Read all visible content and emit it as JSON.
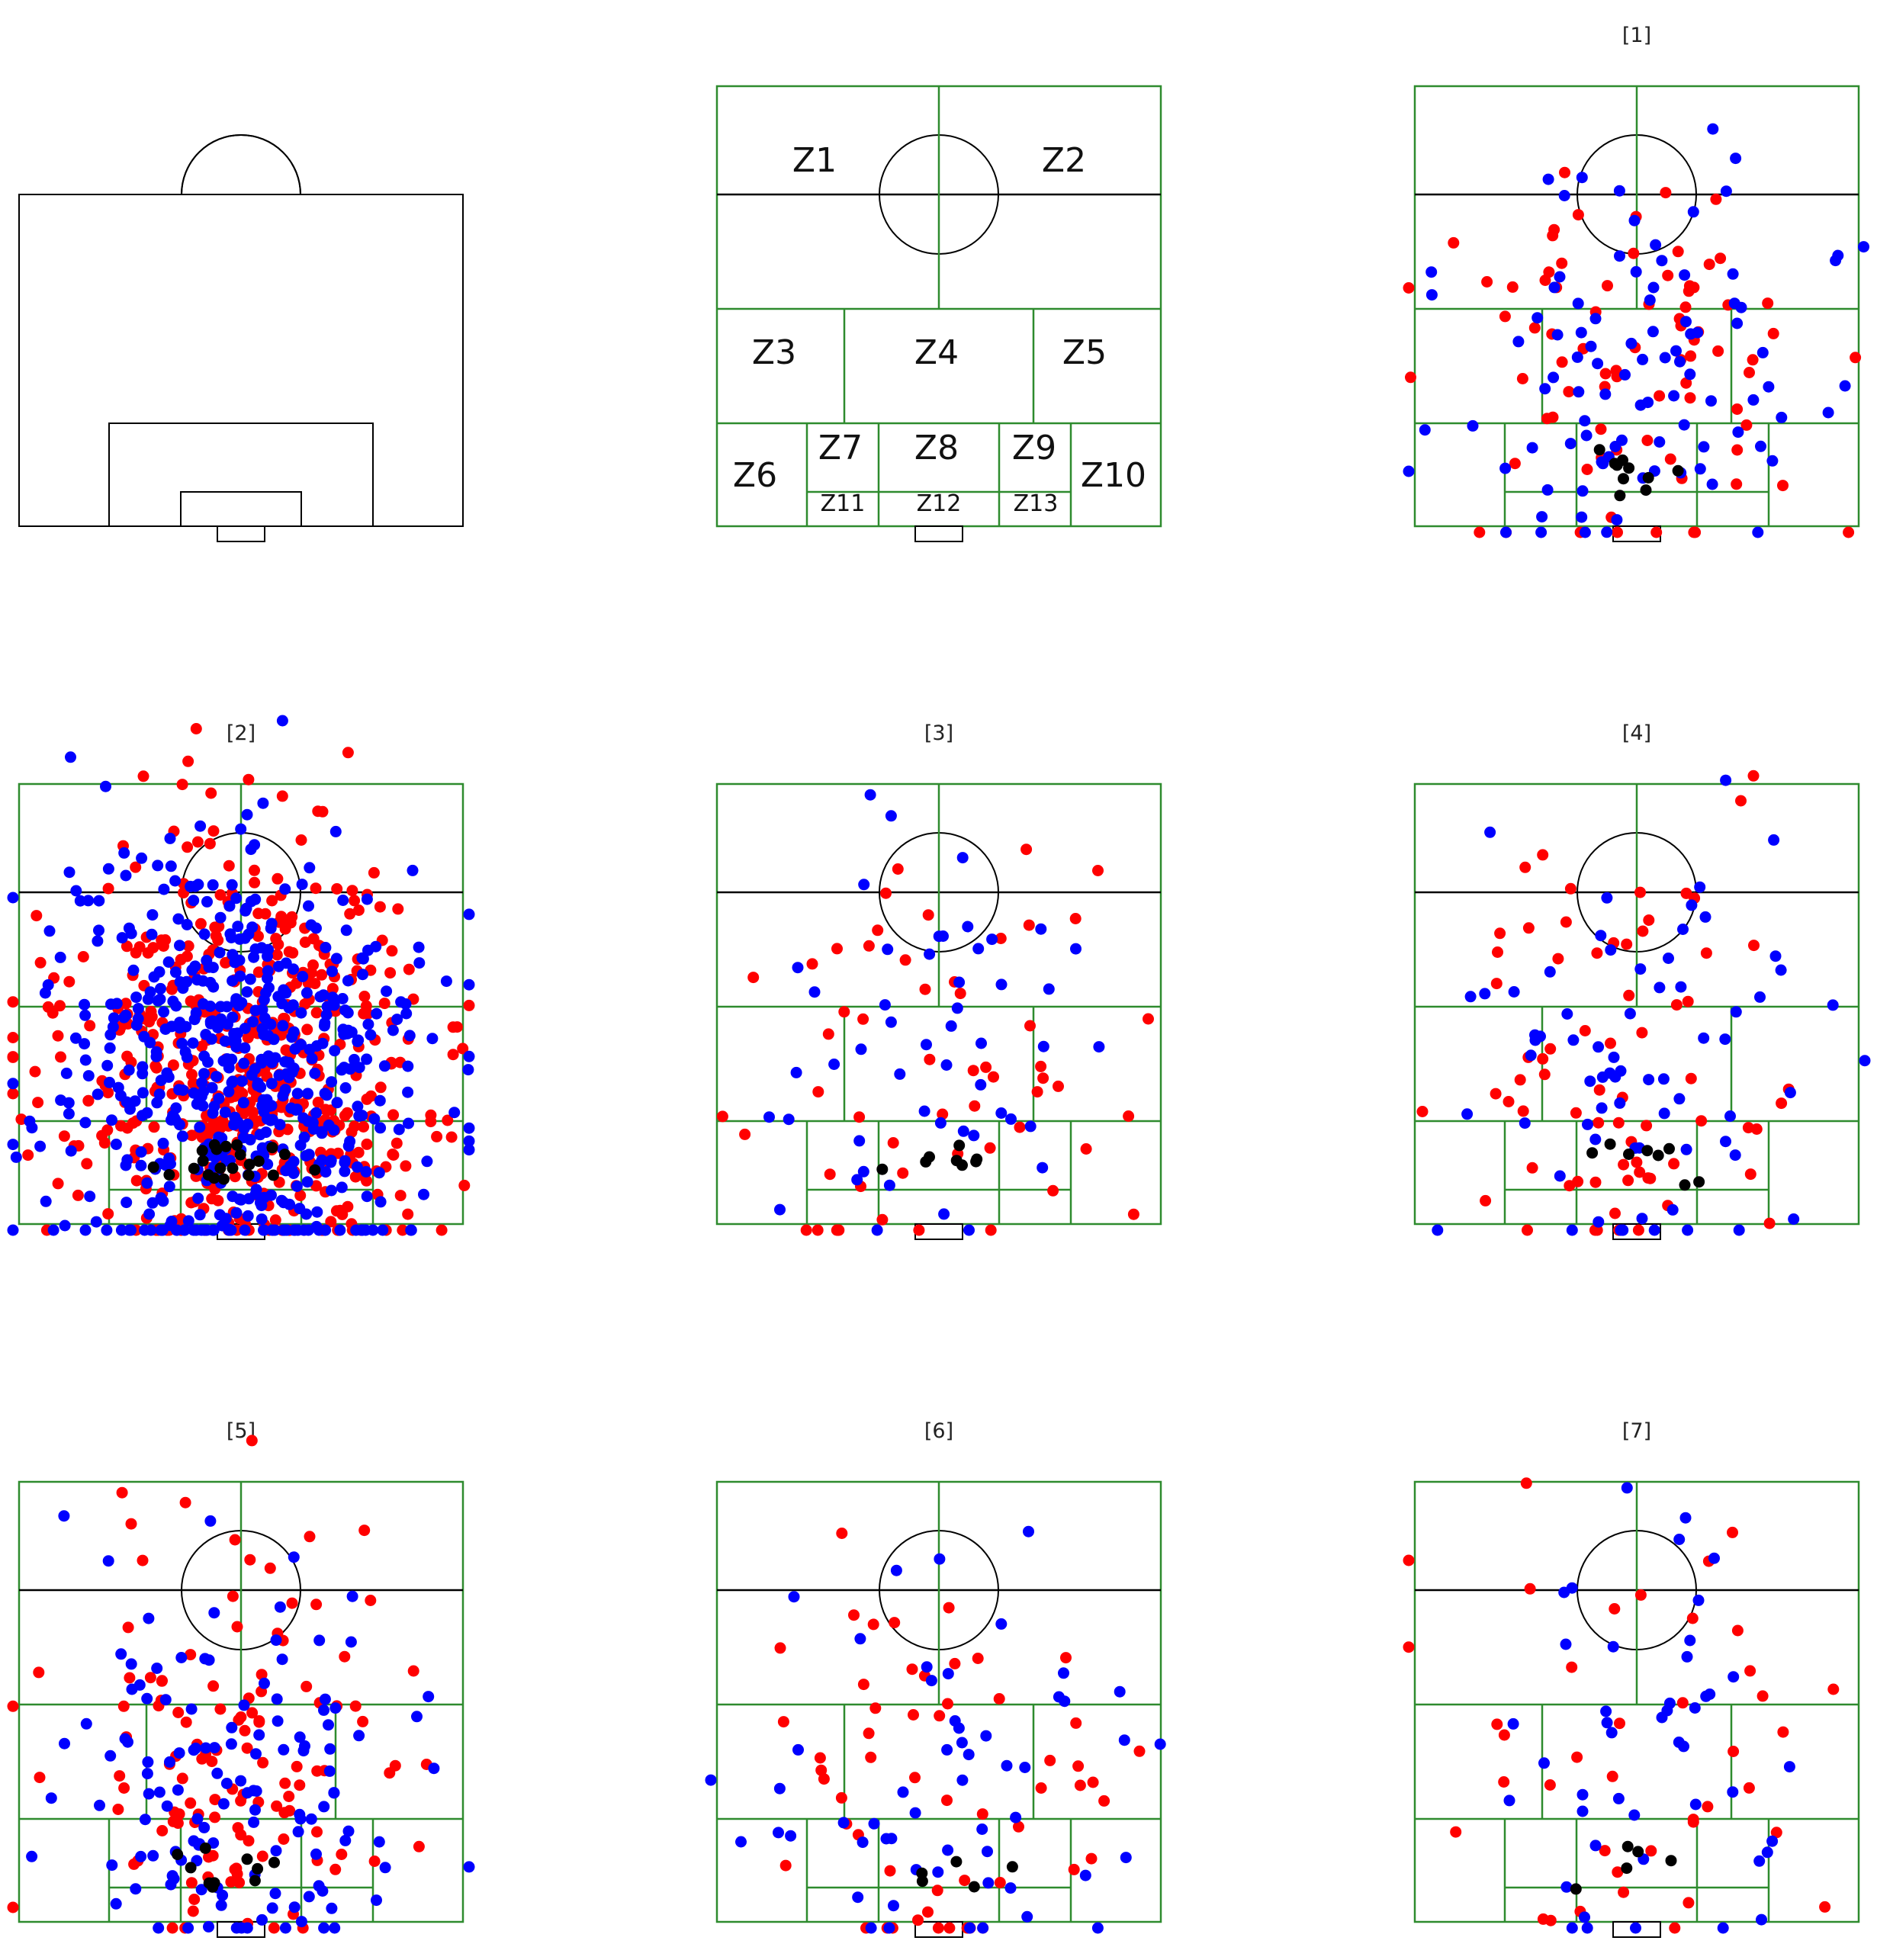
{
  "colors": {
    "pitch_line": "#000000",
    "zone_line": "#2e8b2e",
    "series_red": "#ff0000",
    "series_blue": "#0000ff",
    "series_black": "#000000"
  },
  "zone_labels": [
    "Z1",
    "Z2",
    "Z3",
    "Z4",
    "Z5",
    "Z6",
    "Z7",
    "Z8",
    "Z9",
    "Z10",
    "Z11",
    "Z12",
    "Z13"
  ],
  "chart_data": [
    {
      "id": "p0",
      "type": "diagram",
      "title": ""
    },
    {
      "id": "p1",
      "type": "diagram",
      "title": ""
    },
    {
      "id": "p2",
      "type": "scatter",
      "title": "[1]",
      "counts": {
        "red": 80,
        "blue": 95,
        "black": 10
      },
      "seed": 11,
      "note_region": "mostly upper half and penalty area"
    },
    {
      "id": "p3",
      "type": "scatter",
      "title": "[2]",
      "counts": {
        "red": 520,
        "blue": 560,
        "black": 22
      },
      "seed": 23
    },
    {
      "id": "p4",
      "type": "scatter",
      "title": "[3]",
      "counts": {
        "red": 55,
        "blue": 50,
        "black": 8
      },
      "seed": 37
    },
    {
      "id": "p5",
      "type": "scatter",
      "title": "[4]",
      "counts": {
        "red": 70,
        "blue": 70,
        "black": 8
      },
      "seed": 41
    },
    {
      "id": "p6",
      "type": "scatter",
      "title": "[5]",
      "counts": {
        "red": 120,
        "blue": 130,
        "black": 10
      },
      "seed": 53
    },
    {
      "id": "p7",
      "type": "scatter",
      "title": "[6]",
      "counts": {
        "red": 55,
        "blue": 55,
        "black": 5
      },
      "seed": 67
    },
    {
      "id": "p8",
      "type": "scatter",
      "title": "[7]",
      "counts": {
        "red": 40,
        "blue": 45,
        "black": 5
      },
      "seed": 79
    }
  ]
}
